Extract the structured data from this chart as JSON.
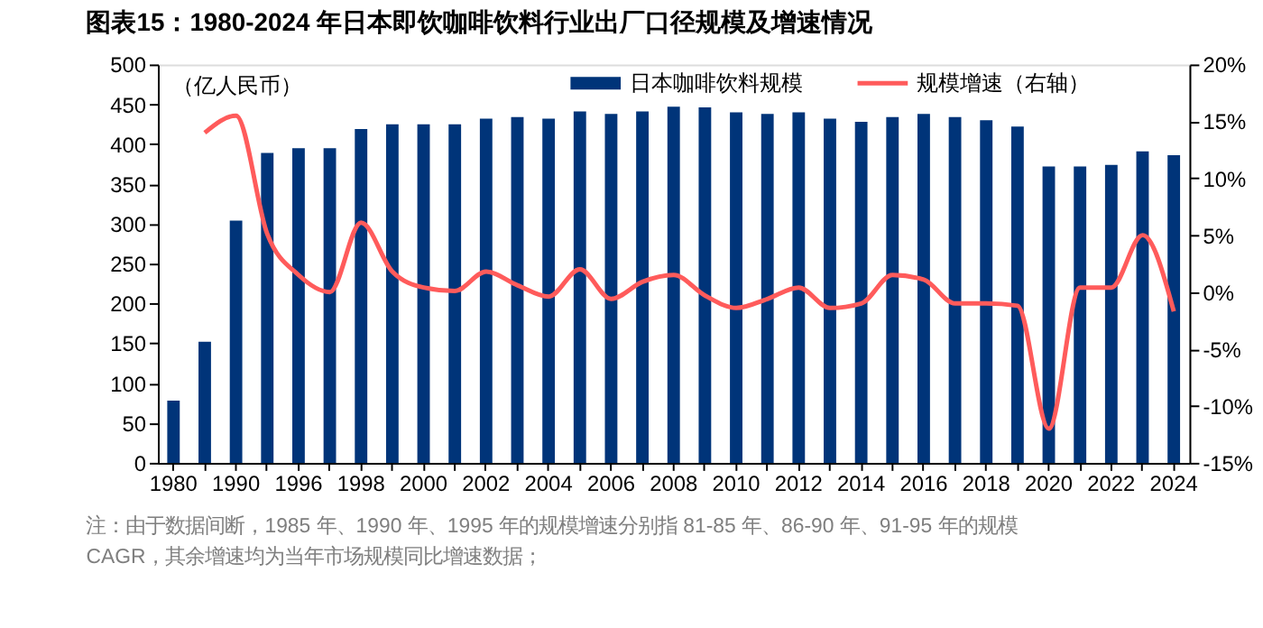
{
  "chart_data": {
    "type": "bar",
    "title": "图表15：1980-2024 年日本即饮咖啡饮料行业出厂口径规模及增速情况",
    "ylabel": "（亿人民币）",
    "categories": [
      "1980",
      null,
      "1990",
      null,
      "1996",
      null,
      "1998",
      null,
      "2000",
      null,
      "2002",
      null,
      "2004",
      null,
      "2006",
      null,
      "2008",
      null,
      "2010",
      null,
      "2012",
      null,
      "2014",
      null,
      "2016",
      null,
      "2018",
      null,
      "2020",
      null,
      "2022",
      null,
      "2024"
    ],
    "series": [
      {
        "name": "日本咖啡饮料规模",
        "color": "#003479",
        "values": [
          78,
          152,
          304,
          389,
          395,
          395,
          419,
          425,
          425,
          425,
          432,
          434,
          432,
          441,
          438,
          441,
          447,
          446,
          440,
          438,
          440,
          432,
          428,
          434,
          438,
          434,
          430,
          422,
          372,
          372,
          374,
          391,
          386
        ]
      },
      {
        "name": "规模增速（右轴）",
        "type": "line",
        "axis": "y2",
        "color": "#ff5b5b",
        "values": [
          null,
          14.0,
          15.5,
          5.1,
          1.5,
          0.0,
          6.1,
          1.8,
          0.4,
          0.1,
          1.8,
          0.6,
          -0.4,
          2.0,
          -0.6,
          0.9,
          1.5,
          -0.3,
          -1.4,
          -0.6,
          0.4,
          -1.4,
          -1.0,
          1.5,
          1.1,
          -1.0,
          -1.0,
          -1.2,
          -12.0,
          0.4,
          0.4,
          5.0,
          -1.7
        ]
      }
    ],
    "ylim": [
      0,
      500
    ],
    "yticks": [
      0,
      50,
      100,
      150,
      200,
      250,
      300,
      350,
      400,
      450,
      500
    ],
    "y2lim": [
      -15,
      20
    ],
    "y2ticks": [
      {
        "value": -15,
        "label": "-15%"
      },
      {
        "value": -10,
        "label": "-10%"
      },
      {
        "value": -5,
        "label": "-5%"
      },
      {
        "value": 0,
        "label": "0%"
      },
      {
        "value": 5,
        "label": "5%"
      },
      {
        "value": 10,
        "label": "10%"
      },
      {
        "value": 15,
        "label": "15%"
      },
      {
        "value": 20,
        "label": "20%"
      }
    ],
    "legend": "top",
    "grid": false,
    "marker": "none",
    "line_style": "solid",
    "annotations": [
      "注：由于数据间断，1985 年、1990 年、1995 年的规模增速分别指 81-85 年、86-90 年、91-95 年的规模 CAGR，其余增速均为当年市场规模同比增速数据；"
    ]
  }
}
